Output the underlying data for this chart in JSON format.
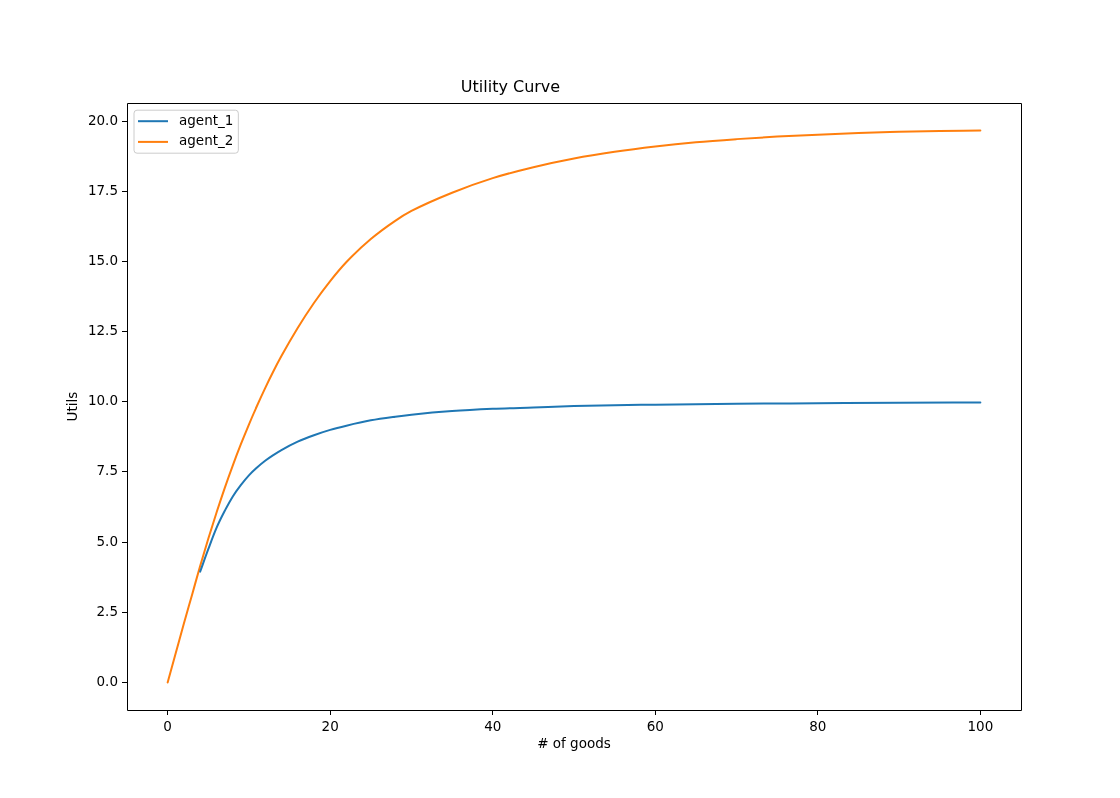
{
  "chart_data": {
    "type": "line",
    "title": "Utility Curve",
    "xlabel": "# of goods",
    "ylabel": "Utils",
    "series": [
      {
        "name": "agent_1",
        "color": "#1f77b4",
        "x": [
          4,
          5,
          6,
          7,
          8,
          9,
          10,
          11,
          12,
          13,
          14,
          16,
          18,
          20,
          22,
          25,
          28,
          30,
          35,
          40,
          45,
          50,
          55,
          60,
          70,
          80,
          90,
          100
        ],
        "values": [
          3.95,
          4.75,
          5.5,
          6.1,
          6.62,
          7.03,
          7.38,
          7.66,
          7.9,
          8.1,
          8.28,
          8.58,
          8.81,
          9.0,
          9.15,
          9.34,
          9.47,
          9.54,
          9.67,
          9.75,
          9.8,
          9.85,
          9.88,
          9.9,
          9.93,
          9.95,
          9.97,
          9.98
        ]
      },
      {
        "name": "agent_2",
        "color": "#ff7f0e",
        "x": [
          0,
          1,
          2,
          3,
          4,
          5,
          6,
          7,
          8,
          9,
          10,
          11,
          12,
          13,
          14,
          16,
          18,
          20,
          22,
          25,
          28,
          30,
          35,
          40,
          45,
          50,
          55,
          60,
          65,
          70,
          75,
          80,
          85,
          90,
          95,
          100
        ],
        "values": [
          0,
          1.05,
          2.1,
          3.12,
          4.15,
          5.12,
          6.04,
          6.91,
          7.72,
          8.48,
          9.19,
          9.86,
          10.49,
          11.08,
          11.63,
          12.63,
          13.52,
          14.3,
          14.98,
          15.8,
          16.45,
          16.8,
          17.45,
          17.97,
          18.36,
          18.67,
          18.91,
          19.1,
          19.25,
          19.36,
          19.45,
          19.52,
          19.58,
          19.62,
          19.65,
          19.67
        ]
      }
    ],
    "xlim": [
      -5,
      105
    ],
    "xticks": [
      0,
      20,
      40,
      60,
      80,
      100
    ],
    "ylim": [
      -0.98,
      20.64
    ],
    "yticks": [
      {
        "value": 0,
        "label": "0.0"
      },
      2.5,
      {
        "value": 5,
        "label": "5.0"
      },
      7.5,
      {
        "value": 10,
        "label": "10.0"
      },
      12.5,
      {
        "value": 15,
        "label": "15.0"
      },
      17.5,
      {
        "value": 20,
        "label": "20.0"
      }
    ],
    "grid": false,
    "legend": "top left"
  }
}
